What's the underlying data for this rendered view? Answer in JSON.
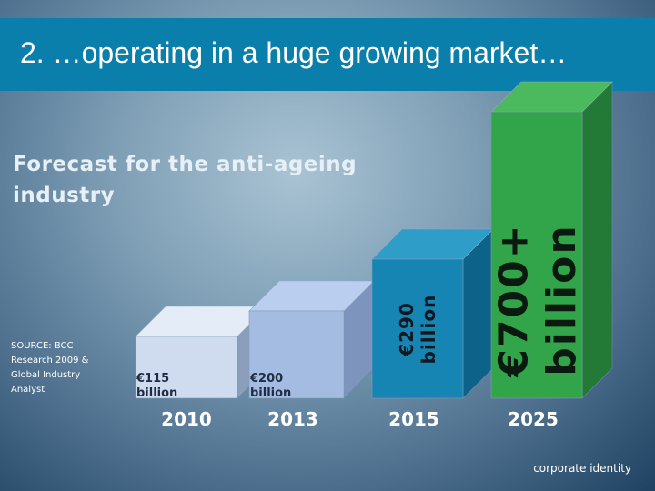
{
  "slide": {
    "title": "2. …operating in a huge growing market…",
    "subtitle": "Forecast for the anti-ageing industry",
    "source": "SOURCE: BCC Research 2009 & Global Industry Analyst",
    "footer": "corporate identity"
  },
  "chart_data": {
    "type": "bar",
    "title": "Forecast for the anti-ageing industry",
    "unit": "€ billion",
    "categories": [
      "2010",
      "2013",
      "2015",
      "2025"
    ],
    "values": [
      115,
      200,
      290,
      700
    ],
    "labels": [
      [
        "€115",
        "billion"
      ],
      [
        "€200",
        "billion"
      ],
      [
        "€290",
        "billion"
      ],
      [
        "€700+",
        "billion"
      ]
    ],
    "colors": [
      {
        "front": "#cfdcef",
        "top": "#e4ecf8",
        "side": "#8b9fbd",
        "text": "#1f2d44"
      },
      {
        "front": "#a5bce2",
        "top": "#bacef0",
        "side": "#7d95bd",
        "text": "#1f2d44"
      },
      {
        "front": "#1785b3",
        "top": "#2e9ec8",
        "side": "#0d6289",
        "text": "#101820"
      },
      {
        "front": "#32a54a",
        "top": "#4bba5e",
        "side": "#237a36",
        "text": "#0b1a10"
      }
    ]
  }
}
